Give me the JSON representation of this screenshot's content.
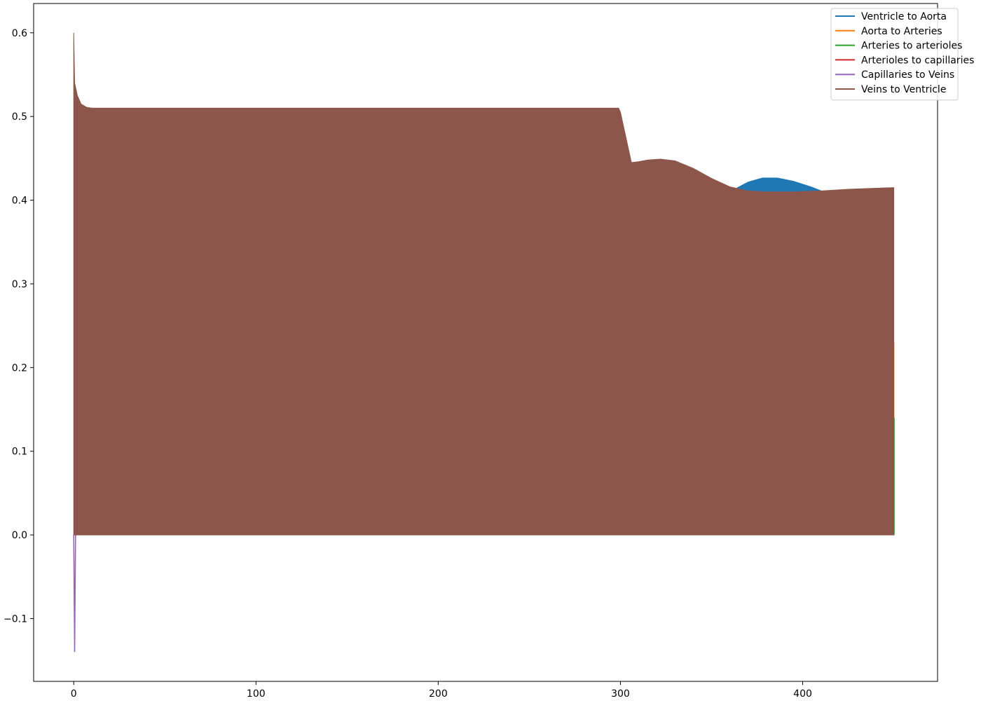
{
  "chart_data": {
    "type": "line",
    "title": "",
    "xlabel": "",
    "ylabel": "",
    "xlim": [
      -22,
      474
    ],
    "ylim": [
      -0.175,
      0.635
    ],
    "xticks": [
      0,
      100,
      200,
      300,
      400
    ],
    "yticks": [
      -0.1,
      0.0,
      0.1,
      0.2,
      0.3,
      0.4,
      0.5,
      0.6
    ],
    "xtick_labels": [
      "0",
      "100",
      "200",
      "300",
      "400"
    ],
    "ytick_labels": [
      "−0.1",
      "0.0",
      "0.1",
      "0.2",
      "0.3",
      "0.4",
      "0.5",
      "0.6"
    ],
    "grid": false,
    "legend_position": "top-right",
    "series": [
      {
        "name": "Ventricle to Aorta",
        "color": "#1f77b4"
      },
      {
        "name": "Aorta to Arteries",
        "color": "#ff7f0e"
      },
      {
        "name": "Arteries to arterioles",
        "color": "#2ca02c"
      },
      {
        "name": "Arterioles to capillaries",
        "color": "#d62728"
      },
      {
        "name": "Capillaries to Veins",
        "color": "#9467bd"
      },
      {
        "name": "Veins to Ventricle",
        "color": "#8c564b"
      }
    ],
    "envelopes": {
      "ventricle_to_aorta_upper": [
        [
          363,
          0.414
        ],
        [
          370,
          0.422
        ],
        [
          378,
          0.427
        ],
        [
          386,
          0.427
        ],
        [
          395,
          0.423
        ],
        [
          405,
          0.416
        ],
        [
          412,
          0.41
        ],
        [
          420,
          0.41
        ]
      ],
      "veins_to_ventricle_upper": [
        [
          0,
          0.6
        ],
        [
          0.5,
          0.54
        ],
        [
          2,
          0.525
        ],
        [
          4,
          0.515
        ],
        [
          7,
          0.511
        ],
        [
          10,
          0.51
        ],
        [
          100,
          0.51
        ],
        [
          150,
          0.51
        ],
        [
          200,
          0.51
        ],
        [
          250,
          0.51
        ],
        [
          299,
          0.51
        ],
        [
          300,
          0.505
        ],
        [
          301,
          0.495
        ],
        [
          302,
          0.485
        ],
        [
          303,
          0.475
        ],
        [
          304,
          0.465
        ],
        [
          305,
          0.455
        ],
        [
          306,
          0.445
        ],
        [
          310,
          0.446
        ],
        [
          315,
          0.448
        ],
        [
          322,
          0.449
        ],
        [
          330,
          0.447
        ],
        [
          340,
          0.438
        ],
        [
          350,
          0.426
        ],
        [
          360,
          0.416
        ],
        [
          370,
          0.411
        ],
        [
          380,
          0.41
        ],
        [
          395,
          0.41
        ],
        [
          410,
          0.411
        ],
        [
          425,
          0.413
        ],
        [
          450,
          0.415
        ]
      ],
      "lower": 0.0,
      "capillaries_dip": [
        [
          0,
          0.0
        ],
        [
          0.5,
          -0.14
        ],
        [
          1,
          0.0
        ]
      ],
      "end_spike_colors": {
        "green": 0.14,
        "orange": 0.23,
        "red": 0.12
      }
    }
  }
}
